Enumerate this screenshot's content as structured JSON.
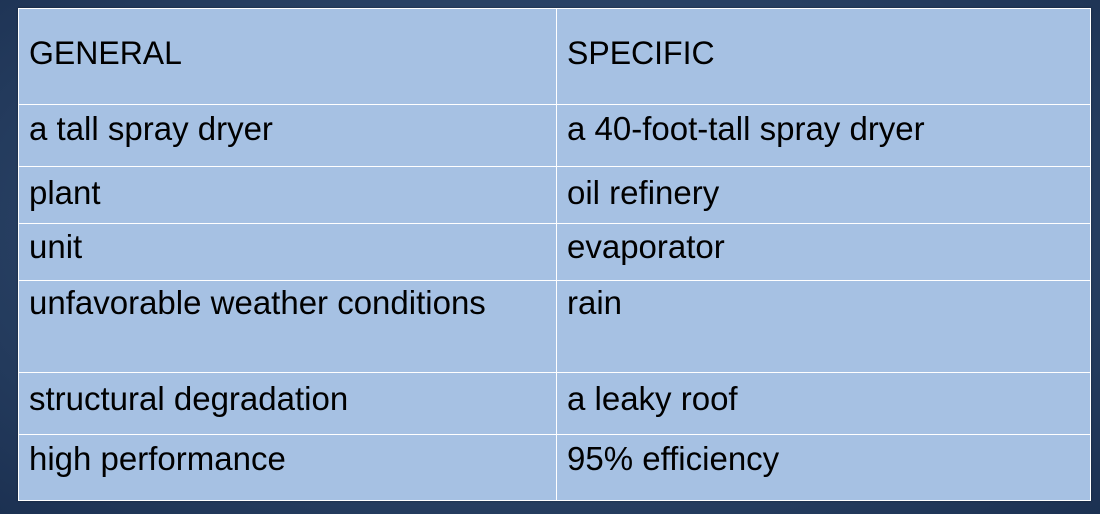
{
  "table": {
    "headers": [
      "GENERAL",
      "SPECIFIC"
    ],
    "rows": [
      [
        "a tall spray dryer",
        "a 40-foot-tall spray dryer"
      ],
      [
        "plant",
        "oil refinery"
      ],
      [
        "unit",
        "evaporator"
      ],
      [
        "unfavorable weather conditions",
        "rain"
      ],
      [
        "structural degradation",
        "a leaky roof"
      ],
      [
        "high performance",
        "95% efficiency"
      ]
    ]
  },
  "colors": {
    "background": "#2a4366",
    "cell_fill": "#a6c1e3",
    "border": "#ffffff",
    "text": "#000000"
  }
}
